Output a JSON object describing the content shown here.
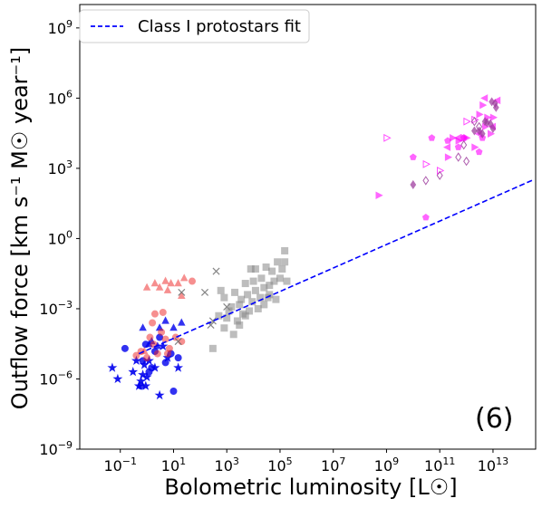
{
  "chart_data": {
    "type": "scatter",
    "title": "",
    "xlabel": "Bolometric luminosity [L☉]",
    "ylabel": "Outflow force [km s⁻¹ M☉ year⁻¹]",
    "x_scale": "log",
    "y_scale": "log",
    "xlim": [
      0.003,
      400000000000000.0
    ],
    "ylim": [
      1e-09,
      10000000000.0
    ],
    "x_ticks": [
      {
        "value": 0.1,
        "base": "10",
        "exp": "−1"
      },
      {
        "value": 10,
        "base": "10",
        "exp": "1"
      },
      {
        "value": 1000,
        "base": "10",
        "exp": "3"
      },
      {
        "value": 100000,
        "base": "10",
        "exp": "5"
      },
      {
        "value": 10000000.0,
        "base": "10",
        "exp": "7"
      },
      {
        "value": 1000000000.0,
        "base": "10",
        "exp": "9"
      },
      {
        "value": 100000000000.0,
        "base": "10",
        "exp": "11"
      },
      {
        "value": 10000000000000.0,
        "base": "10",
        "exp": "13"
      }
    ],
    "y_ticks": [
      {
        "value": 1e-09,
        "base": "10",
        "exp": "−9"
      },
      {
        "value": 1e-06,
        "base": "10",
        "exp": "−6"
      },
      {
        "value": 0.001,
        "base": "10",
        "exp": "−3"
      },
      {
        "value": 1,
        "base": "10",
        "exp": "0"
      },
      {
        "value": 1000,
        "base": "10",
        "exp": "3"
      },
      {
        "value": 1000000.0,
        "base": "10",
        "exp": "6"
      },
      {
        "value": 1000000000.0,
        "base": "10",
        "exp": "9"
      }
    ],
    "legend": {
      "position": "top-left",
      "entries": [
        "Class I protostars fit"
      ]
    },
    "annotation": "(6)",
    "grid": false,
    "fit_line": {
      "label": "Class I protostars fit",
      "color": "#0000ff",
      "style": "dashed",
      "x": [
        0.5,
        500000000000000.0
      ],
      "y": [
        1.2e-05,
        400.0
      ]
    },
    "series": [
      {
        "marker": "star",
        "color": "#0000ee",
        "filled": true,
        "opacity": 0.9,
        "points": [
          [
            0.05,
            3e-06
          ],
          [
            0.08,
            1e-06
          ],
          [
            0.3,
            2e-06
          ],
          [
            0.4,
            6e-06
          ],
          [
            0.7,
            1.5e-06
          ],
          [
            0.5,
            5e-07
          ],
          [
            0.6,
            8e-07
          ],
          [
            0.8,
            4e-06
          ],
          [
            1.0,
            1.2e-06
          ],
          [
            0.9,
            5e-07
          ],
          [
            3,
            2e-07
          ],
          [
            1.2,
            6e-06
          ],
          [
            2.0,
            3e-06
          ],
          [
            4,
            2.5e-05
          ],
          [
            6,
            8e-06
          ],
          [
            15,
            3e-06
          ]
        ]
      },
      {
        "marker": "circle",
        "color": "#0000ee",
        "filled": true,
        "opacity": 0.8,
        "points": [
          [
            0.15,
            2e-05
          ],
          [
            0.6,
            5e-07
          ],
          [
            0.7,
            6e-06
          ],
          [
            0.9,
            3e-05
          ],
          [
            1.2,
            2e-06
          ],
          [
            1.5,
            3e-06
          ],
          [
            2,
            1.5e-05
          ],
          [
            3,
            6e-05
          ],
          [
            5,
            5e-06
          ],
          [
            8,
            1.2e-05
          ],
          [
            10,
            3e-07
          ],
          [
            15,
            8e-06
          ]
        ]
      },
      {
        "marker": "triangle-up",
        "color": "#0000ee",
        "filled": true,
        "opacity": 0.8,
        "points": [
          [
            0.7,
            0.00015
          ],
          [
            1.5,
            4e-05
          ],
          [
            2.5,
            2.5e-05
          ],
          [
            3,
            0.00015
          ],
          [
            5,
            0.0003
          ],
          [
            10,
            0.00015
          ],
          [
            20,
            0.00025
          ],
          [
            1.2,
            3e-05
          ]
        ]
      },
      {
        "marker": "circle",
        "color": "#ee2222",
        "filled": true,
        "opacity": 0.5,
        "points": [
          [
            0.4,
            1e-05
          ],
          [
            0.6,
            1.5e-05
          ],
          [
            1,
            8e-06
          ],
          [
            1.3,
            6e-05
          ],
          [
            1.6,
            0.00025
          ],
          [
            2,
            0.0006
          ],
          [
            2.5,
            1.2e-05
          ],
          [
            3.5,
            0.0001
          ],
          [
            5,
            5e-05
          ],
          [
            7,
            2e-05
          ],
          [
            12,
            6e-05
          ],
          [
            4,
            0.0007
          ],
          [
            1.8,
            3e-05
          ],
          [
            50,
            0.015
          ],
          [
            20,
            4e-05
          ],
          [
            6,
            1.2e-05
          ]
        ]
      },
      {
        "marker": "triangle-up",
        "color": "#ee2222",
        "filled": true,
        "opacity": 0.5,
        "points": [
          [
            1,
            0.008
          ],
          [
            2,
            0.012
          ],
          [
            3,
            0.008
          ],
          [
            5,
            0.015
          ],
          [
            8,
            0.012
          ],
          [
            15,
            0.012
          ],
          [
            25,
            0.02
          ],
          [
            20,
            0.0035
          ],
          [
            6,
            0.006
          ],
          [
            0.8,
            1.5e-05
          ]
        ]
      },
      {
        "marker": "x",
        "color": "#666666",
        "filled": false,
        "opacity": 0.8,
        "points": [
          [
            15,
            4e-05
          ],
          [
            20,
            0.005
          ],
          [
            250,
            0.0002
          ],
          [
            400,
            0.04
          ],
          [
            300,
            0.0003
          ],
          [
            1000,
            0.0012
          ],
          [
            150,
            0.005
          ]
        ]
      },
      {
        "marker": "square",
        "color": "#888888",
        "filled": true,
        "opacity": 0.55,
        "points": [
          [
            300,
            2e-05
          ],
          [
            500,
            0.0005
          ],
          [
            600,
            0.006
          ],
          [
            800,
            0.00015
          ],
          [
            1000,
            0.0004
          ],
          [
            1200,
            0.0008
          ],
          [
            1500,
            0.0012
          ],
          [
            2000,
            0.005
          ],
          [
            2500,
            0.0003
          ],
          [
            3000,
            0.0015
          ],
          [
            3500,
            0.0025
          ],
          [
            4000,
            0.0006
          ],
          [
            5000,
            0.012
          ],
          [
            6000,
            0.004
          ],
          [
            7000,
            0.0008
          ],
          [
            8000,
            0.05
          ],
          [
            9000,
            0.002
          ],
          [
            10000,
            0.015
          ],
          [
            12000,
            0.006
          ],
          [
            15000,
            0.001
          ],
          [
            18000,
            0.003
          ],
          [
            20000,
            0.02
          ],
          [
            25000,
            0.008
          ],
          [
            30000,
            0.06
          ],
          [
            35000,
            0.003
          ],
          [
            40000,
            0.01
          ],
          [
            50000,
            0.04
          ],
          [
            60000,
            0.015
          ],
          [
            70000,
            0.0025
          ],
          [
            80000,
            0.1
          ],
          [
            100000,
            0.02
          ],
          [
            120000,
            0.05
          ],
          [
            150000,
            0.1
          ],
          [
            180000,
            0.015
          ],
          [
            3000,
            0.0002
          ],
          [
            1800,
            8e-05
          ],
          [
            800,
            0.003
          ],
          [
            5000,
            0.0005
          ],
          [
            40000,
            0.004
          ],
          [
            12000,
            0.05
          ],
          [
            150000,
            0.3
          ],
          [
            25000,
            0.0015
          ]
        ]
      },
      {
        "marker": "triangle-right",
        "color": "#ff00ff",
        "filled": true,
        "opacity": 0.6,
        "points": [
          [
            500000000.0,
            70
          ],
          [
            200000000000.0,
            3000
          ],
          [
            300000000000.0,
            20000.0
          ],
          [
            500000000000.0,
            15000.0
          ],
          [
            1000000000000.0,
            20000.0
          ],
          [
            2000000000000.0,
            8000
          ],
          [
            3000000000000.0,
            200000.0
          ],
          [
            5000000000000.0,
            60000.0
          ],
          [
            8000000000000.0,
            30000.0
          ],
          [
            4000000000000.0,
            500000.0
          ],
          [
            6000000000000.0,
            150000.0
          ],
          [
            10000000000000.0,
            150000.0
          ],
          [
            800000000000.0,
            20000.0
          ]
        ]
      },
      {
        "marker": "triangle-right",
        "color": "#ff00ff",
        "filled": false,
        "opacity": 0.7,
        "points": [
          [
            1000000000.0,
            20000.0
          ],
          [
            30000000000.0,
            1500
          ],
          [
            100000000000.0,
            800
          ],
          [
            1000000000000.0,
            100000.0
          ],
          [
            2000000000000.0,
            120000.0
          ]
        ]
      },
      {
        "marker": "triangle-left",
        "color": "#ff00ff",
        "filled": true,
        "opacity": 0.6,
        "points": [
          [
            200000000000.0,
            8000.0
          ],
          [
            500000000000.0,
            20000.0
          ],
          [
            3000000000000.0,
            30000.0
          ],
          [
            5000000000000.0,
            1000000.0
          ],
          [
            10000000000000.0,
            60000.0
          ],
          [
            15000000000000.0,
            800000.0
          ]
        ]
      },
      {
        "marker": "pentagon",
        "color": "#ff00ff",
        "filled": true,
        "opacity": 0.6,
        "points": [
          [
            30000000000.0,
            8
          ],
          [
            50000000000.0,
            20000.0
          ],
          [
            10000000000.0,
            3000
          ],
          [
            200000000000.0,
            15000.0
          ],
          [
            500000000000.0,
            8000.0
          ],
          [
            3000000000000.0,
            5000
          ],
          [
            800000000000.0,
            20000.0
          ],
          [
            4000000000000.0,
            20000.0
          ]
        ]
      },
      {
        "marker": "diamond",
        "color": "#993399",
        "filled": true,
        "opacity": 0.7,
        "points": [
          [
            10000000000.0,
            200
          ],
          [
            2000000000000.0,
            40000.0
          ],
          [
            3000000000000.0,
            40000.0
          ],
          [
            4000000000000.0,
            30000.0
          ],
          [
            5000000000000.0,
            100000.0
          ],
          [
            6000000000000.0,
            90000.0
          ],
          [
            8000000000000.0,
            80000.0
          ],
          [
            10000000000000.0,
            50000.0
          ],
          [
            12000000000000.0,
            600000.0
          ],
          [
            13000000000000.0,
            400000.0
          ],
          [
            9000000000000.0,
            700000.0
          ]
        ]
      },
      {
        "marker": "diamond",
        "color": "#993399",
        "filled": false,
        "opacity": 0.8,
        "points": [
          [
            30000000000.0,
            300
          ],
          [
            100000000000.0,
            500
          ],
          [
            500000000000.0,
            3000.0
          ],
          [
            800000000000.0,
            10000.0
          ],
          [
            1000000000000.0,
            2000.0
          ],
          [
            3000000000000.0,
            60000.0
          ],
          [
            2000000000000.0,
            100000.0
          ]
        ]
      }
    ]
  }
}
